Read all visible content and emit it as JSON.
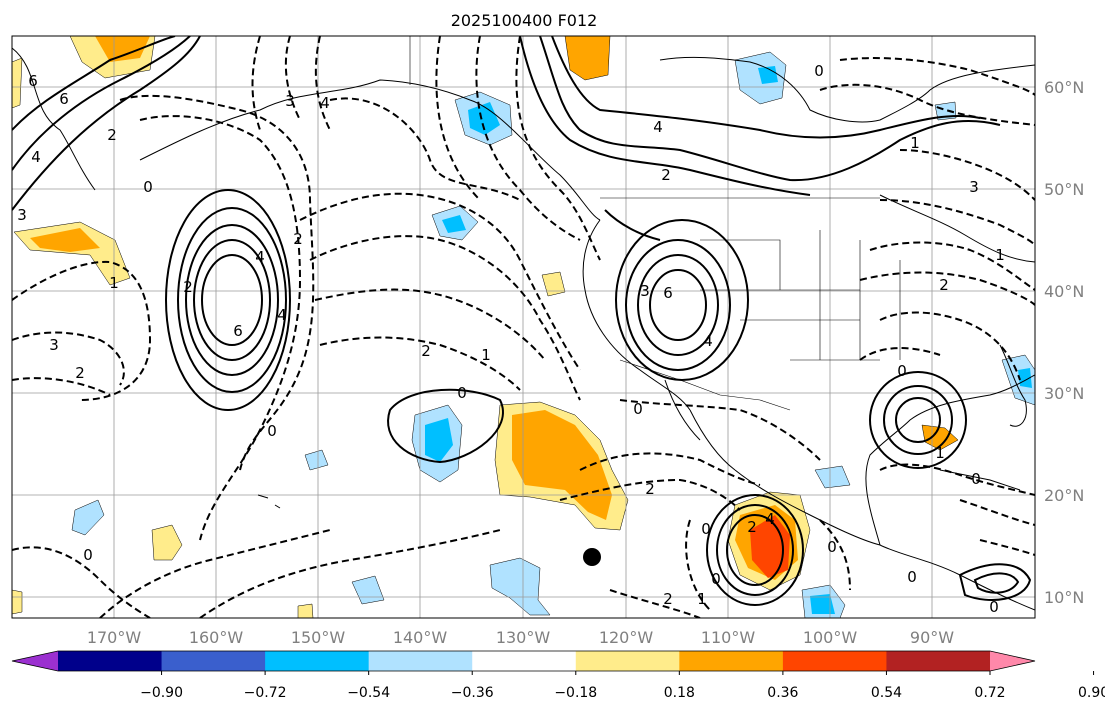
{
  "title": "2025100400 F012",
  "lon_ticks": [
    "170°W",
    "160°W",
    "150°W",
    "140°W",
    "130°W",
    "120°W",
    "110°W",
    "100°W",
    "90°W"
  ],
  "lat_ticks": [
    "60°N",
    "50°N",
    "40°N",
    "30°N",
    "20°N",
    "10°N"
  ],
  "colorbar": {
    "ticks": [
      "−0.90",
      "−0.72",
      "−0.54",
      "−0.36",
      "−0.18",
      "0.18",
      "0.36",
      "0.54",
      "0.72",
      "0.90"
    ],
    "colors": [
      "#9b30d0",
      "#00008b",
      "#3a5fcd",
      "#00bfff",
      "#b0e2ff",
      "#ffffff",
      "#ffec8b",
      "#ffa500",
      "#ff4500",
      "#b22222",
      "#ff88aa"
    ]
  },
  "contour_labels": {
    "l1": "6",
    "l2": "3",
    "l3": "2",
    "l4": "0",
    "l5": "6",
    "l6": "4",
    "l7": "3",
    "l8": "2",
    "l9": "1",
    "l10": "0",
    "l11": "0",
    "l12": "2",
    "l13": "4",
    "l14": "2",
    "l15": "6",
    "l16": "4",
    "l17": "4",
    "l18": "3",
    "l19": "2",
    "l20": "1",
    "l21": "0",
    "l22": "0",
    "l23": "2",
    "l24": "2",
    "l25": "1",
    "l26": "3",
    "l27": "1",
    "l28": "0",
    "l29": "2",
    "l30": "0",
    "l31": "0",
    "l32": "1",
    "l33": "0",
    "l34": "1",
    "l35": "0",
    "l36": "2",
    "l37": "4",
    "l38": "4",
    "l39": "3",
    "l40": "0",
    "l41": "0",
    "l42": "2",
    "l43": "0",
    "l44": "6",
    "l45": "4"
  }
}
